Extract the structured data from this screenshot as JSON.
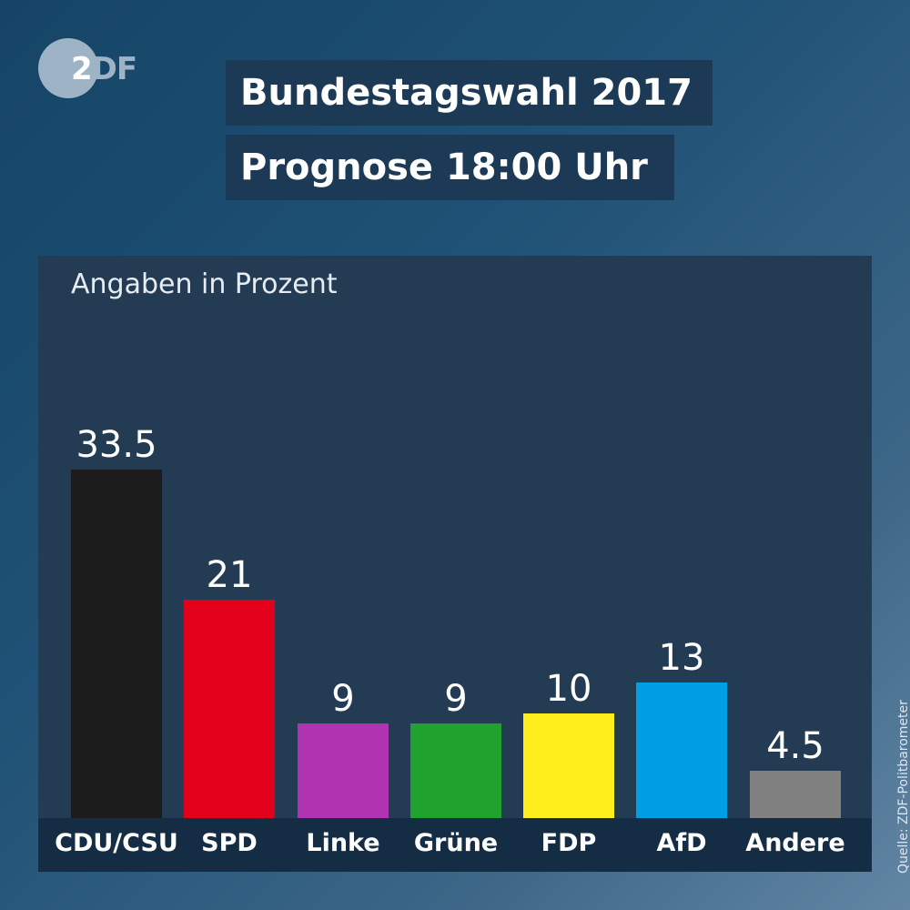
{
  "logo": {
    "z": "2",
    "df": "DF"
  },
  "header": {
    "title": "Bundestagswahl 2017",
    "subtitle": "Prognose 18:00 Uhr"
  },
  "source": "Quelle: ZDF-Politbarometer",
  "chart_data": {
    "type": "bar",
    "title": "Bundestagswahl 2017",
    "subtitle": "Angaben in Prozent",
    "categories": [
      "CDU/CSU",
      "SPD",
      "Linke",
      "Grüne",
      "FDP",
      "AfD",
      "Andere"
    ],
    "values": [
      33.5,
      21,
      9,
      9,
      10,
      13,
      4.5
    ],
    "value_labels": [
      "33.5",
      "21",
      "9",
      "9",
      "10",
      "13",
      "4.5"
    ],
    "colors": [
      "#1c1c1c",
      "#e2001a",
      "#b033b2",
      "#1fa22e",
      "#ffed1c",
      "#009ee3",
      "#808080"
    ],
    "xlabel": "",
    "ylabel": "",
    "ylim": [
      0,
      35
    ],
    "grid": false
  }
}
